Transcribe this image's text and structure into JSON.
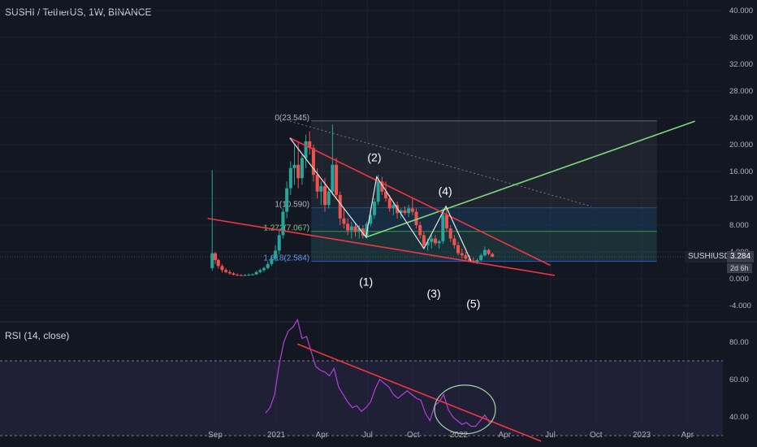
{
  "title": "SUSHI / TetherUS, 1W, BINANCE",
  "rsi_title": "RSI (14, close)",
  "price_tag": {
    "symbol": "SUSHIUSDT",
    "value": "3.284",
    "countdown": "2d 6h"
  },
  "colors": {
    "background": "#131722",
    "up": "#26a69a",
    "down": "#ef5350",
    "trend_red": "#f23645",
    "trend_green": "#7fd67f",
    "white_line": "#e8e8e8",
    "rsi_line": "#b042d9"
  },
  "chart_data": [
    {
      "type": "candlestick",
      "series": [
        {
          "name": "SUSHI / TetherUS"
        }
      ],
      "ylim": [
        -6,
        40
      ],
      "price_ticks": [
        "40.000",
        "36.000",
        "32.000",
        "28.000",
        "24.000",
        "20.000",
        "16.000",
        "12.000",
        "8.000",
        "4.000",
        "0.000",
        "-4.000"
      ],
      "price_tick_values": [
        40,
        36,
        32,
        28,
        24,
        20,
        16,
        12,
        8,
        4,
        0,
        -4
      ],
      "x_ticks": [
        "Sep",
        "2021",
        "Apr",
        "Jul",
        "Oct",
        "2022",
        "Apr",
        "Jul",
        "Oct",
        "2023",
        "Apr"
      ],
      "x_tick_values": [
        0,
        4,
        7,
        10,
        13,
        16,
        19,
        22,
        25,
        28,
        31
      ],
      "note_x_units": "months from 2020-09",
      "candles": [
        [
          -0.2,
          1.6,
          16.2,
          1.2,
          3.8
        ],
        [
          0.0,
          3.8,
          4.0,
          2.2,
          2.8
        ],
        [
          0.2,
          2.8,
          3.0,
          1.5,
          1.9
        ],
        [
          0.45,
          1.9,
          2.2,
          0.9,
          1.3
        ],
        [
          0.7,
          1.3,
          1.6,
          0.8,
          1.0
        ],
        [
          0.95,
          1.0,
          1.3,
          0.6,
          0.8
        ],
        [
          1.2,
          0.8,
          1.0,
          0.5,
          0.6
        ],
        [
          1.45,
          0.6,
          0.8,
          0.4,
          0.55
        ],
        [
          1.7,
          0.55,
          0.7,
          0.4,
          0.5
        ],
        [
          1.95,
          0.5,
          0.7,
          0.4,
          0.55
        ],
        [
          2.2,
          0.55,
          0.8,
          0.45,
          0.6
        ],
        [
          2.45,
          0.6,
          0.8,
          0.5,
          0.65
        ],
        [
          2.7,
          0.65,
          1.2,
          0.55,
          1.0
        ],
        [
          2.95,
          1.0,
          1.5,
          0.8,
          1.3
        ],
        [
          3.2,
          1.3,
          1.8,
          1.0,
          1.6
        ],
        [
          3.45,
          1.6,
          2.6,
          1.4,
          2.2
        ],
        [
          3.7,
          2.2,
          3.5,
          1.9,
          3.0
        ],
        [
          3.95,
          3.0,
          5.0,
          2.6,
          4.2
        ],
        [
          4.2,
          4.2,
          7.5,
          3.6,
          6.5
        ],
        [
          4.45,
          6.5,
          10.5,
          6.0,
          10.0
        ],
        [
          4.7,
          10.0,
          14.5,
          9.0,
          13.5
        ],
        [
          4.95,
          13.5,
          17.5,
          12.5,
          16.5
        ],
        [
          5.2,
          16.5,
          20.0,
          14.0,
          17.0
        ],
        [
          5.45,
          17.0,
          20.5,
          13.5,
          15.0
        ],
        [
          5.7,
          15.0,
          18.5,
          14.0,
          18.0
        ],
        [
          5.95,
          18.0,
          21.5,
          16.5,
          20.5
        ],
        [
          6.2,
          20.5,
          22.0,
          18.5,
          19.5
        ],
        [
          6.45,
          19.5,
          20.0,
          14.5,
          15.5
        ],
        [
          6.7,
          15.5,
          16.5,
          12.0,
          13.0
        ],
        [
          6.95,
          13.0,
          14.5,
          11.0,
          13.8
        ],
        [
          7.2,
          13.8,
          15.0,
          10.0,
          11.0
        ],
        [
          7.45,
          11.0,
          13.5,
          10.5,
          13.0
        ],
        [
          7.7,
          13.0,
          23.0,
          12.5,
          17.0
        ],
        [
          7.95,
          17.0,
          18.0,
          12.0,
          12.5
        ],
        [
          8.2,
          12.5,
          13.0,
          8.0,
          9.0
        ],
        [
          8.45,
          9.0,
          10.5,
          7.5,
          8.2
        ],
        [
          8.7,
          8.2,
          9.0,
          6.5,
          7.2
        ],
        [
          8.95,
          7.2,
          8.5,
          6.0,
          7.8
        ],
        [
          9.2,
          7.8,
          8.2,
          6.3,
          7.0
        ],
        [
          9.45,
          7.0,
          8.0,
          6.0,
          7.5
        ],
        [
          9.7,
          7.5,
          8.0,
          6.0,
          6.4
        ],
        [
          9.95,
          6.4,
          8.5,
          6.0,
          8.2
        ],
        [
          10.2,
          8.2,
          10.5,
          7.8,
          9.5
        ],
        [
          10.45,
          9.5,
          12.0,
          9.0,
          11.5
        ],
        [
          10.7,
          11.5,
          15.5,
          11.0,
          14.5
        ],
        [
          10.95,
          14.5,
          15.2,
          12.5,
          13.0
        ],
        [
          11.2,
          13.0,
          14.5,
          11.5,
          12.0
        ],
        [
          11.45,
          12.0,
          12.5,
          10.0,
          10.5
        ],
        [
          11.7,
          10.5,
          11.5,
          9.5,
          11.0
        ],
        [
          11.95,
          11.0,
          11.5,
          9.0,
          9.8
        ],
        [
          12.2,
          9.8,
          10.5,
          9.0,
          10.2
        ],
        [
          12.45,
          10.2,
          10.8,
          9.5,
          9.8
        ],
        [
          12.7,
          9.8,
          11.0,
          9.2,
          10.5
        ],
        [
          12.95,
          10.5,
          12.0,
          9.5,
          10.0
        ],
        [
          13.2,
          10.0,
          10.5,
          7.5,
          8.0
        ],
        [
          13.45,
          8.0,
          8.5,
          6.0,
          6.5
        ],
        [
          13.7,
          6.5,
          7.0,
          4.5,
          5.0
        ],
        [
          13.95,
          5.0,
          6.0,
          4.2,
          5.5
        ],
        [
          14.2,
          5.5,
          6.5,
          4.5,
          6.0
        ],
        [
          14.45,
          6.0,
          6.5,
          5.0,
          5.3
        ],
        [
          14.7,
          5.3,
          5.8,
          4.5,
          5.6
        ],
        [
          14.95,
          5.6,
          10.5,
          5.2,
          9.5
        ],
        [
          15.2,
          9.5,
          10.5,
          7.0,
          7.5
        ],
        [
          15.45,
          7.5,
          8.0,
          5.5,
          6.0
        ],
        [
          15.7,
          6.0,
          6.5,
          4.5,
          5.0
        ],
        [
          15.95,
          5.0,
          5.5,
          3.5,
          3.8
        ],
        [
          16.2,
          3.8,
          4.5,
          3.0,
          3.5
        ],
        [
          16.45,
          3.5,
          4.0,
          2.8,
          3.0
        ],
        [
          16.7,
          3.0,
          3.5,
          2.5,
          2.7
        ],
        [
          16.95,
          2.7,
          3.2,
          2.3,
          2.5
        ],
        [
          17.2,
          2.5,
          3.0,
          2.2,
          2.8
        ],
        [
          17.45,
          2.8,
          3.8,
          2.6,
          3.5
        ],
        [
          17.7,
          3.5,
          4.8,
          3.3,
          4.3
        ],
        [
          17.95,
          4.3,
          4.5,
          3.5,
          3.7
        ],
        [
          18.2,
          3.7,
          3.9,
          3.2,
          3.284
        ]
      ],
      "fib_levels": [
        {
          "label": "0(23.545)",
          "value": 23.545
        },
        {
          "label": "1(10.590)",
          "value": 10.59
        },
        {
          "label": "1.272(7.067)",
          "value": 7.067
        },
        {
          "label": "1.618(2.584)",
          "value": 2.584
        }
      ],
      "wave_labels": [
        {
          "text": "(1)",
          "x": 9.9,
          "y": -1.0
        },
        {
          "text": "(2)",
          "x": 10.45,
          "y": 17.5
        },
        {
          "text": "(3)",
          "x": 14.35,
          "y": -2.8
        },
        {
          "text": "(4)",
          "x": 15.1,
          "y": 12.5
        },
        {
          "text": "(5)",
          "x": 16.95,
          "y": -4.3
        }
      ],
      "wave_path": [
        [
          4.9,
          21.0
        ],
        [
          9.9,
          6.2
        ],
        [
          10.6,
          15.2
        ],
        [
          13.7,
          4.5
        ],
        [
          15.15,
          10.8
        ],
        [
          16.8,
          2.6
        ]
      ],
      "trend_green": [
        [
          9.9,
          6.2
        ],
        [
          31.5,
          23.5
        ]
      ],
      "trend_upper": [
        [
          4.9,
          21.0
        ],
        [
          22.0,
          2.0
        ]
      ],
      "trend_lower": [
        [
          -0.5,
          9.0
        ],
        [
          22.3,
          0.5
        ]
      ],
      "dotted_line": [
        [
          4.9,
          23.5
        ],
        [
          24.7,
          10.8
        ]
      ]
    },
    {
      "type": "line",
      "series": [
        {
          "name": "RSI (14, close)"
        }
      ],
      "ylim": [
        27,
        97
      ],
      "ticks": [
        "80.00",
        "60.00",
        "40.00"
      ],
      "tick_values": [
        80,
        60,
        40
      ],
      "band": [
        30,
        70
      ],
      "x": [
        3.3,
        3.6,
        3.9,
        4.2,
        4.5,
        4.8,
        5.1,
        5.4,
        5.7,
        6.0,
        6.3,
        6.6,
        6.9,
        7.2,
        7.5,
        7.8,
        8.1,
        8.4,
        8.7,
        9.0,
        9.3,
        9.6,
        9.9,
        10.2,
        10.5,
        10.8,
        11.1,
        11.4,
        11.7,
        12.0,
        12.3,
        12.6,
        12.9,
        13.2,
        13.5,
        13.8,
        14.1,
        14.4,
        14.7,
        15.0,
        15.3,
        15.6,
        15.9,
        16.2,
        16.5,
        16.8,
        17.1,
        17.4,
        17.7,
        18.0
      ],
      "values": [
        42,
        45,
        52,
        68,
        80,
        86,
        88,
        92,
        82,
        83,
        75,
        67,
        65,
        64,
        62,
        66,
        56,
        52,
        48,
        45,
        46,
        43,
        45,
        48,
        55,
        60,
        58,
        56,
        52,
        50,
        52,
        54,
        52,
        50,
        49,
        42,
        38,
        46,
        48,
        52,
        44,
        40,
        38,
        36,
        37,
        35,
        35,
        38,
        41,
        37
      ],
      "trendline": [
        [
          5.4,
          79
        ],
        [
          21.4,
          27
        ]
      ],
      "highlight_ellipse": {
        "cx": 16.4,
        "cy": 44,
        "rx": 2.0,
        "ry": 13
      }
    }
  ]
}
